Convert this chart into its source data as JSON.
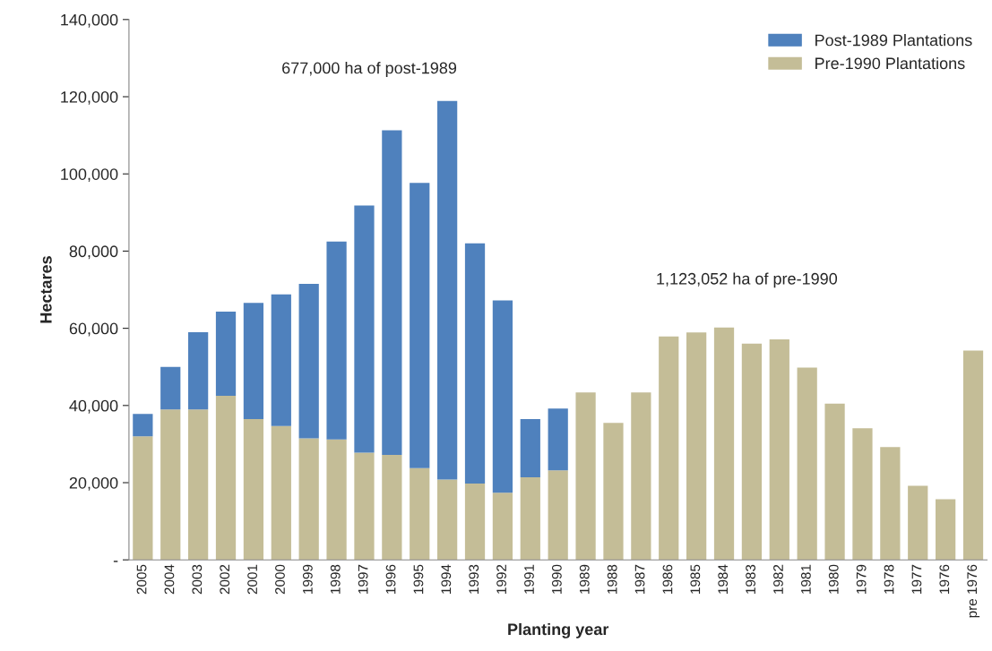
{
  "chart_data": {
    "type": "bar",
    "stacked": true,
    "xlabel": "Planting year",
    "ylabel": "Hectares",
    "categories": [
      "2005",
      "2004",
      "2003",
      "2002",
      "2001",
      "2000",
      "1999",
      "1998",
      "1997",
      "1996",
      "1995",
      "1994",
      "1993",
      "1992",
      "1991",
      "1990",
      "1989",
      "1988",
      "1987",
      "1986",
      "1985",
      "1984",
      "1983",
      "1982",
      "1981",
      "1980",
      "1979",
      "1978",
      "1977",
      "1976",
      "pre 1976"
    ],
    "series": [
      {
        "name": "Pre-1990 Plantations",
        "color": "#c4bd97",
        "values": [
          32000,
          39000,
          39000,
          42500,
          36500,
          34700,
          31500,
          31200,
          27800,
          27200,
          23800,
          20800,
          19800,
          17400,
          21400,
          23200,
          43400,
          35500,
          43400,
          57900,
          58900,
          60200,
          56000,
          57100,
          49800,
          40500,
          34100,
          29200,
          19200,
          15700,
          54200
        ]
      },
      {
        "name": "Post-1989 Plantations",
        "color": "#4f81bd",
        "values": [
          5800,
          11000,
          20000,
          21800,
          30100,
          34100,
          40000,
          51300,
          64000,
          84100,
          73900,
          98100,
          62200,
          49800,
          15100,
          16000,
          null,
          null,
          null,
          null,
          null,
          null,
          null,
          null,
          null,
          null,
          null,
          null,
          null,
          null,
          null
        ]
      }
    ],
    "ylim": [
      0,
      140000
    ],
    "yticks": [
      {
        "value": 0,
        "label": "-"
      },
      {
        "value": 20000,
        "label": "20,000"
      },
      {
        "value": 40000,
        "label": "40,000"
      },
      {
        "value": 60000,
        "label": "60,000"
      },
      {
        "value": 80000,
        "label": "80,000"
      },
      {
        "value": 100000,
        "label": "100,000"
      },
      {
        "value": 120000,
        "label": "120,000"
      },
      {
        "value": 140000,
        "label": "140,000"
      }
    ],
    "grid": false,
    "legend": "top right",
    "annotations": [
      "677,000 ha of post-1989",
      "1,123,052 ha of pre-1990"
    ]
  }
}
